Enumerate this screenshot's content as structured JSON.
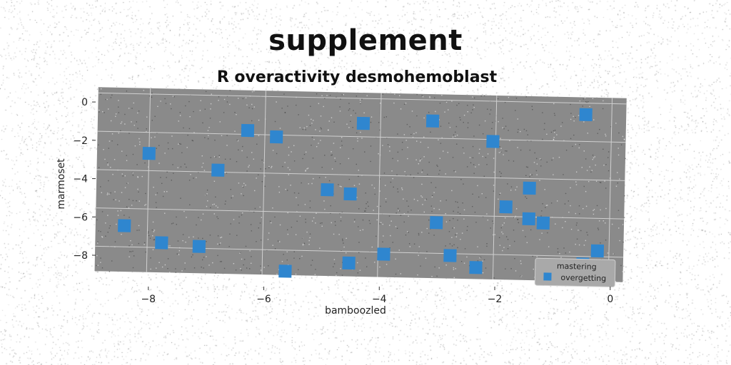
{
  "figure": {
    "suptitle": "supplement",
    "colors": {
      "plot_bg": "#8a8a8a",
      "marker": "#2f86cf",
      "grid": "#d0d0d0"
    }
  },
  "chart_data": {
    "type": "scatter",
    "title": "R overactivity desmohemoblast",
    "xlabel": "bamboozled",
    "ylabel": "marmoset",
    "xlim": [
      -8.9,
      0.25
    ],
    "ylim": [
      -9.3,
      0.3
    ],
    "xticks": [
      -8,
      -6,
      -4,
      -2,
      0
    ],
    "yticks": [
      0,
      -2,
      -4,
      -6,
      -8
    ],
    "grid": true,
    "marker": "square",
    "legend": {
      "title": "mastering",
      "location": "lower right"
    },
    "series": [
      {
        "name": "overgetting",
        "color": "#2f86cf",
        "points": [
          {
            "x": -8.4,
            "y": -6.9
          },
          {
            "x": -8.0,
            "y": -3.1
          },
          {
            "x": -7.75,
            "y": -7.75
          },
          {
            "x": -7.1,
            "y": -7.9
          },
          {
            "x": -6.8,
            "y": -3.9
          },
          {
            "x": -6.3,
            "y": -1.8
          },
          {
            "x": -5.8,
            "y": -2.1
          },
          {
            "x": -5.6,
            "y": -9.1
          },
          {
            "x": -4.9,
            "y": -4.8
          },
          {
            "x": -4.5,
            "y": -5.0
          },
          {
            "x": -4.5,
            "y": -8.6
          },
          {
            "x": -4.3,
            "y": -1.3
          },
          {
            "x": -3.9,
            "y": -8.1
          },
          {
            "x": -3.1,
            "y": -1.1
          },
          {
            "x": -3.0,
            "y": -6.4
          },
          {
            "x": -2.75,
            "y": -8.1
          },
          {
            "x": -2.3,
            "y": -8.7
          },
          {
            "x": -2.05,
            "y": -2.1
          },
          {
            "x": -1.8,
            "y": -5.5
          },
          {
            "x": -1.4,
            "y": -4.5
          },
          {
            "x": -1.4,
            "y": -6.1
          },
          {
            "x": -1.15,
            "y": -6.3
          },
          {
            "x": -0.45,
            "y": -0.6
          },
          {
            "x": -0.45,
            "y": -8.4
          },
          {
            "x": -0.2,
            "y": -7.7
          }
        ]
      }
    ]
  }
}
